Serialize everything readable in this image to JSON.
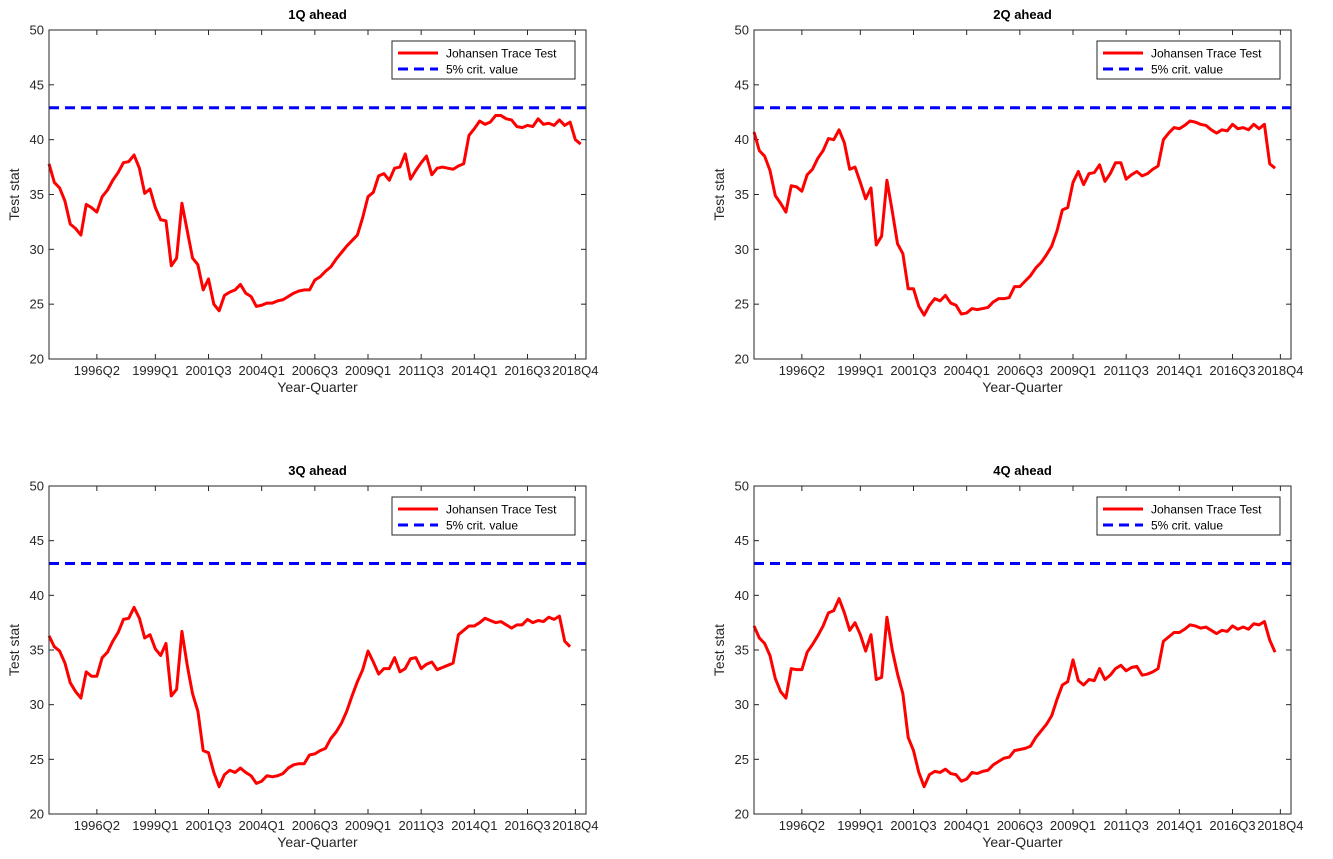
{
  "figure": {
    "common": {
      "xlabel": "Year-Quarter",
      "ylabel": "Test stat",
      "ylim": [
        20,
        50
      ],
      "yticks": [
        20,
        25,
        30,
        35,
        40,
        45,
        50
      ],
      "x_tick_labels": [
        "1996Q2",
        "1999Q1",
        "2001Q3",
        "2004Q1",
        "2006Q3",
        "2009Q1",
        "2011Q3",
        "2014Q1",
        "2016Q3",
        "2018Q4"
      ],
      "legend_placement": "top-right",
      "colors": {
        "trace": "#ff0000",
        "crit": "#0000ff",
        "axis": "#262626"
      }
    }
  },
  "chart_data": [
    {
      "type": "line",
      "title": "1Q ahead",
      "xlabel": "Year-Quarter",
      "ylabel": "Test stat",
      "ylim": [
        20,
        50
      ],
      "x_first": "1994Q1",
      "x_last": "2019Q2",
      "grid": false,
      "legend": "top-right",
      "series": [
        {
          "name": "Johansen Trace Test",
          "color": "#ff0000",
          "style": "solid",
          "values": [
            37.8,
            36.1,
            35.6,
            34.4,
            32.3,
            31.9,
            31.3,
            34.1,
            33.8,
            33.4,
            34.8,
            35.4,
            36.3,
            37.0,
            37.9,
            38.0,
            38.6,
            37.4,
            35.1,
            35.5,
            33.8,
            32.7,
            32.6,
            28.5,
            29.2,
            34.2,
            31.7,
            29.2,
            28.6,
            26.3,
            27.3,
            25.0,
            24.4,
            25.8,
            26.1,
            26.3,
            26.8,
            26.0,
            25.7,
            24.8,
            24.9,
            25.1,
            25.1,
            25.3,
            25.4,
            25.7,
            26.0,
            26.2,
            26.3,
            26.3,
            27.2,
            27.5,
            28.0,
            28.4,
            29.1,
            29.7,
            30.3,
            30.8,
            31.3,
            32.9,
            34.8,
            35.2,
            36.7,
            36.9,
            36.3,
            37.4,
            37.5,
            38.7,
            36.4,
            37.2,
            37.9,
            38.5,
            36.8,
            37.4,
            37.5,
            37.4,
            37.3,
            37.6,
            37.8,
            40.4,
            41.0,
            41.7,
            41.4,
            41.6,
            42.2,
            42.2,
            41.9,
            41.8,
            41.2,
            41.1,
            41.3,
            41.2,
            41.9,
            41.4,
            41.5,
            41.3,
            41.8,
            41.3,
            41.6,
            40.0,
            39.6
          ]
        },
        {
          "name": "5% crit. value",
          "color": "#0000ff",
          "style": "dashed",
          "constant": 42.91
        }
      ]
    },
    {
      "type": "line",
      "title": "2Q ahead",
      "xlabel": "Year-Quarter",
      "ylabel": "Test stat",
      "ylim": [
        20,
        50
      ],
      "x_first": "1994Q1",
      "x_last": "2019Q2",
      "grid": false,
      "legend": "top-right",
      "series": [
        {
          "name": "Johansen Trace Test",
          "color": "#ff0000",
          "style": "solid",
          "values": [
            40.7,
            39.0,
            38.5,
            37.2,
            34.9,
            34.2,
            33.4,
            35.8,
            35.7,
            35.3,
            36.8,
            37.3,
            38.3,
            39.0,
            40.1,
            40.0,
            40.9,
            39.7,
            37.3,
            37.5,
            36.1,
            34.6,
            35.6,
            30.4,
            31.2,
            36.3,
            33.5,
            30.5,
            29.6,
            26.4,
            26.4,
            24.8,
            24.0,
            24.9,
            25.5,
            25.3,
            25.8,
            25.1,
            24.9,
            24.1,
            24.2,
            24.6,
            24.5,
            24.6,
            24.7,
            25.2,
            25.5,
            25.5,
            25.6,
            26.6,
            26.6,
            27.1,
            27.6,
            28.3,
            28.8,
            29.5,
            30.3,
            31.7,
            33.6,
            33.8,
            36.1,
            37.1,
            35.9,
            36.9,
            37.0,
            37.7,
            36.2,
            36.9,
            37.9,
            37.9,
            36.4,
            36.8,
            37.1,
            36.7,
            36.9,
            37.3,
            37.6,
            40.0,
            40.6,
            41.1,
            41.0,
            41.3,
            41.7,
            41.6,
            41.4,
            41.3,
            40.9,
            40.6,
            40.9,
            40.8,
            41.4,
            41.0,
            41.1,
            40.9,
            41.4,
            41.0,
            41.4,
            37.8,
            37.4
          ]
        },
        {
          "name": "5% crit. value",
          "color": "#0000ff",
          "style": "dashed",
          "constant": 42.91
        }
      ]
    },
    {
      "type": "line",
      "title": "3Q ahead",
      "xlabel": "Year-Quarter",
      "ylabel": "Test stat",
      "ylim": [
        20,
        50
      ],
      "x_first": "1994Q1",
      "x_last": "2019Q2",
      "grid": false,
      "legend": "top-right",
      "series": [
        {
          "name": "Johansen Trace Test",
          "color": "#ff0000",
          "style": "solid",
          "values": [
            36.3,
            35.3,
            34.9,
            33.8,
            32.0,
            31.2,
            30.6,
            33.0,
            32.6,
            32.6,
            34.3,
            34.8,
            35.8,
            36.6,
            37.8,
            37.9,
            38.9,
            37.9,
            36.1,
            36.4,
            35.1,
            34.5,
            35.6,
            30.8,
            31.4,
            36.7,
            33.6,
            31.0,
            29.4,
            25.8,
            25.6,
            23.8,
            22.5,
            23.6,
            24.0,
            23.8,
            24.2,
            23.8,
            23.5,
            22.8,
            23.0,
            23.5,
            23.4,
            23.5,
            23.7,
            24.2,
            24.5,
            24.6,
            24.6,
            25.4,
            25.5,
            25.8,
            26.0,
            26.9,
            27.5,
            28.3,
            29.4,
            30.8,
            32.1,
            33.2,
            34.9,
            33.9,
            32.8,
            33.3,
            33.3,
            34.3,
            33.0,
            33.3,
            34.2,
            34.3,
            33.3,
            33.7,
            33.9,
            33.2,
            33.4,
            33.6,
            33.8,
            36.4,
            36.8,
            37.2,
            37.2,
            37.5,
            37.9,
            37.7,
            37.5,
            37.6,
            37.3,
            37.0,
            37.3,
            37.3,
            37.8,
            37.5,
            37.7,
            37.6,
            38.0,
            37.8,
            38.1,
            35.8,
            35.3
          ]
        },
        {
          "name": "5% crit. value",
          "color": "#0000ff",
          "style": "dashed",
          "constant": 42.91
        }
      ]
    },
    {
      "type": "line",
      "title": "4Q ahead",
      "xlabel": "Year-Quarter",
      "ylabel": "Test stat",
      "ylim": [
        20,
        50
      ],
      "x_first": "1994Q1",
      "x_last": "2019Q2",
      "grid": false,
      "legend": "top-right",
      "series": [
        {
          "name": "Johansen Trace Test",
          "color": "#ff0000",
          "style": "solid",
          "values": [
            37.2,
            36.1,
            35.6,
            34.5,
            32.4,
            31.2,
            30.6,
            33.3,
            33.2,
            33.2,
            34.8,
            35.5,
            36.3,
            37.2,
            38.4,
            38.6,
            39.7,
            38.4,
            36.8,
            37.5,
            36.4,
            34.9,
            36.4,
            32.3,
            32.5,
            38.0,
            35.0,
            32.8,
            31.0,
            27.0,
            25.8,
            23.8,
            22.5,
            23.6,
            23.9,
            23.8,
            24.1,
            23.7,
            23.6,
            23.0,
            23.2,
            23.8,
            23.7,
            23.9,
            24.0,
            24.5,
            24.8,
            25.1,
            25.2,
            25.8,
            25.9,
            26.0,
            26.2,
            27.0,
            27.6,
            28.2,
            29.0,
            30.5,
            31.8,
            32.1,
            34.1,
            32.2,
            31.8,
            32.3,
            32.2,
            33.3,
            32.3,
            32.7,
            33.3,
            33.6,
            33.1,
            33.4,
            33.5,
            32.7,
            32.8,
            33.0,
            33.3,
            35.8,
            36.2,
            36.6,
            36.6,
            36.9,
            37.3,
            37.2,
            37.0,
            37.1,
            36.8,
            36.5,
            36.8,
            36.7,
            37.2,
            36.9,
            37.1,
            36.9,
            37.4,
            37.3,
            37.6,
            35.9,
            34.8
          ]
        },
        {
          "name": "5% crit. value",
          "color": "#0000ff",
          "style": "dashed",
          "constant": 42.91
        }
      ]
    }
  ]
}
